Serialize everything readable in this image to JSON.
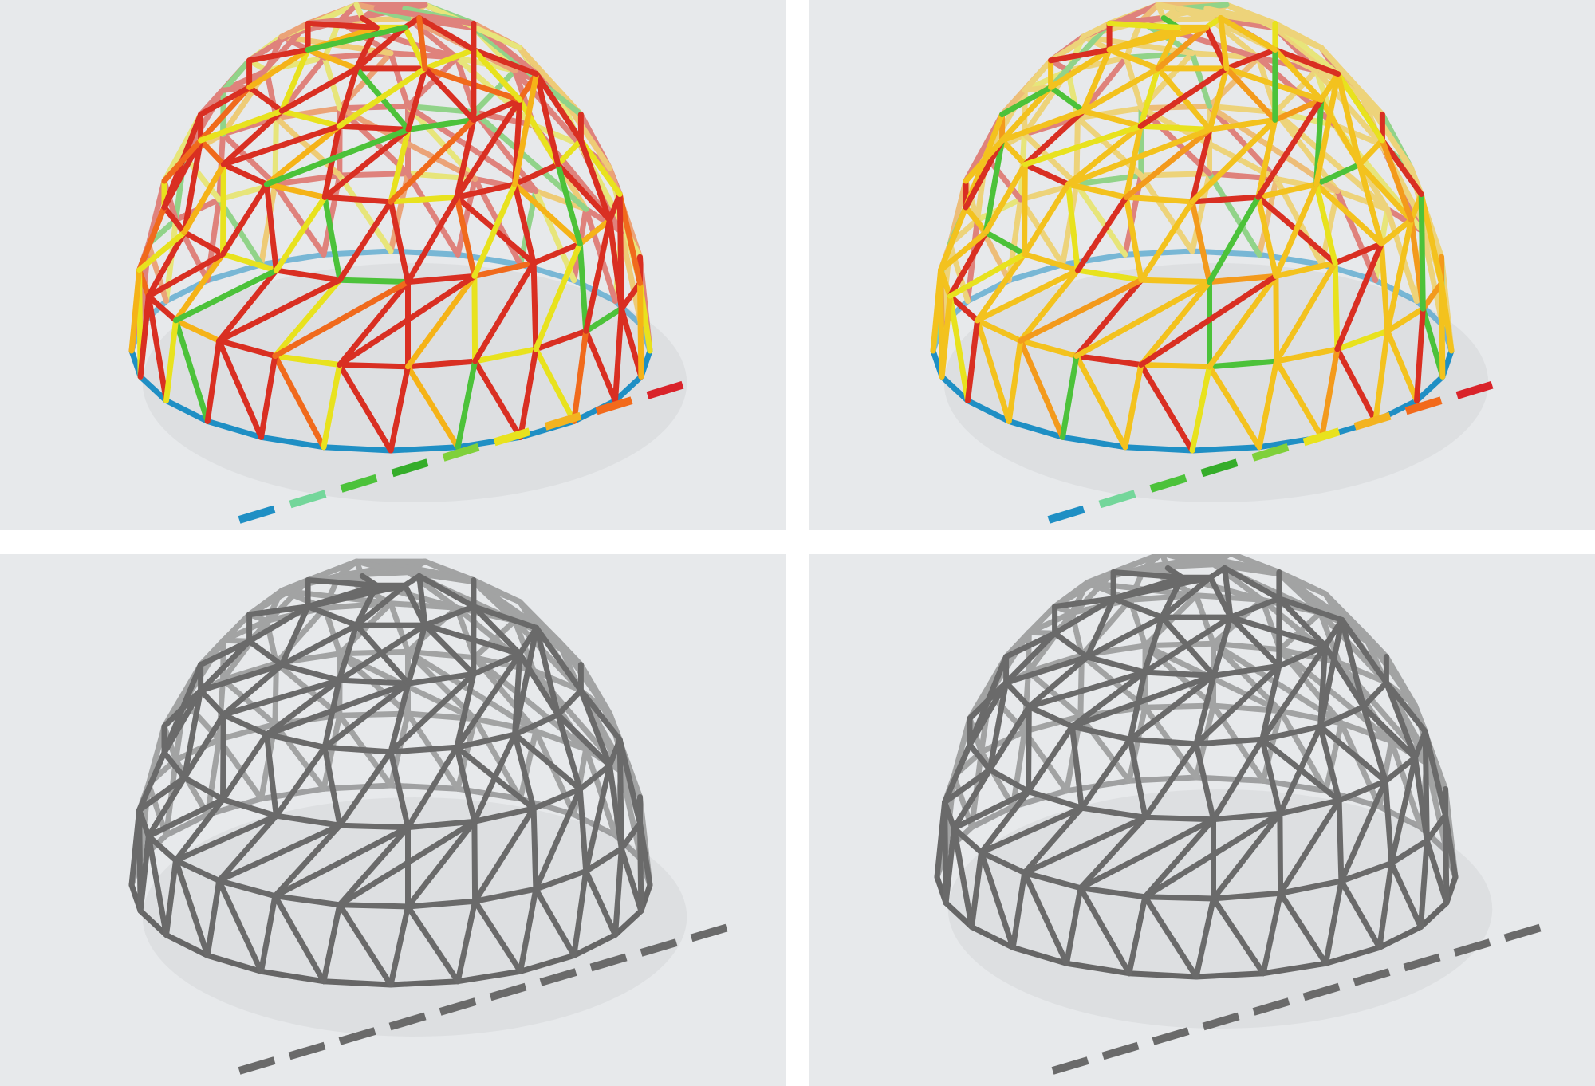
{
  "panels": [
    {
      "name": "panel-colored-dome-1",
      "background": "#e7e9eb",
      "colored": true,
      "ring_color": "#1f8fc4",
      "stroke_color": "#d92f22",
      "accent_colors": [
        "#f06a1c",
        "#f5b318",
        "#e8e21e",
        "#4cc23a"
      ],
      "legend": [
        "#1f8fc4",
        "#74d69a",
        "#4cc23a",
        "#35ad2a",
        "#7fd03a",
        "#e8e21e",
        "#f3b320",
        "#f26a1b",
        "#d9232a"
      ]
    },
    {
      "name": "panel-colored-dome-2",
      "background": "#e7e9eb",
      "colored": true,
      "ring_color": "#1f8fc4",
      "stroke_color": "#f3c21e",
      "accent_colors": [
        "#e8e21e",
        "#f39a1c",
        "#d92f22",
        "#4cc23a"
      ],
      "legend": [
        "#1f8fc4",
        "#74d69a",
        "#4cc23a",
        "#35ad2a",
        "#7fd03a",
        "#e8e21e",
        "#f3b320",
        "#f26a1b",
        "#d9232a"
      ]
    },
    {
      "name": "panel-gray-dome-1",
      "background": "#e7e9eb",
      "colored": false,
      "ring_color": "#666666",
      "stroke_color": "#6a6a6a",
      "accent_colors": [
        "#6a6a6a"
      ],
      "legend": [
        "#6a6a6a",
        "#6a6a6a",
        "#6a6a6a",
        "#6a6a6a",
        "#6a6a6a",
        "#6a6a6a",
        "#6a6a6a",
        "#6a6a6a",
        "#6a6a6a",
        "#6a6a6a"
      ]
    },
    {
      "name": "panel-gray-dome-2",
      "background": "#e7e9eb",
      "colored": false,
      "ring_color": "#666666",
      "stroke_color": "#6a6a6a",
      "accent_colors": [
        "#6a6a6a"
      ],
      "legend": [
        "#6a6a6a",
        "#6a6a6a",
        "#6a6a6a",
        "#6a6a6a",
        "#6a6a6a",
        "#6a6a6a",
        "#6a6a6a",
        "#6a6a6a",
        "#6a6a6a",
        "#6a6a6a"
      ]
    }
  ]
}
